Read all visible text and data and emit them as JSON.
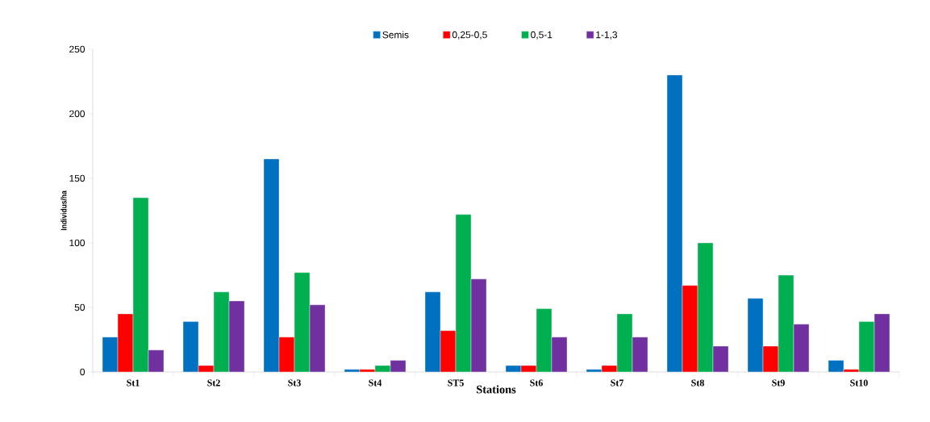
{
  "chart_data": {
    "type": "bar",
    "xlabel": "Stations",
    "ylabel": "Individus/ha",
    "categories": [
      "St1",
      "St2",
      "St3",
      "St4",
      "ST5",
      "St6",
      "St7",
      "St8",
      "St9",
      "St10"
    ],
    "series": [
      {
        "name": "Semis",
        "color": "#0070c0",
        "values": [
          27,
          39,
          165,
          2,
          62,
          5,
          2,
          230,
          57,
          9
        ]
      },
      {
        "name": "0,25-0,5",
        "color": "#ff0000",
        "values": [
          45,
          5,
          27,
          2,
          32,
          5,
          5,
          67,
          20,
          2
        ]
      },
      {
        "name": "0,5-1",
        "color": "#00b050",
        "values": [
          135,
          62,
          77,
          5,
          122,
          49,
          45,
          100,
          75,
          39
        ]
      },
      {
        "name": "1-1,3",
        "color": "#7030a0",
        "values": [
          17,
          55,
          52,
          9,
          72,
          27,
          27,
          20,
          37,
          45
        ]
      }
    ],
    "ylim": [
      0,
      250
    ],
    "yticks": [
      0,
      50,
      100,
      150,
      200,
      250
    ],
    "legend": "top"
  }
}
